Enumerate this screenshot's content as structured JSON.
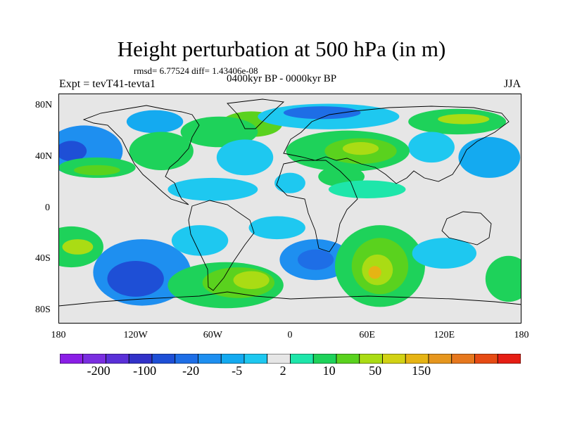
{
  "title": "Height perturbation at 500 hPa (in m)",
  "stats_line": "rmsd= 6.77524 diff= 1.43406e-08",
  "period": "0400kyr BP - 0000kyr BP",
  "experiment": "Expt = tevT41-tevta1",
  "season": "JJA",
  "lat_ticks": [
    {
      "label": "80N",
      "lat": 80
    },
    {
      "label": "40N",
      "lat": 40
    },
    {
      "label": "0",
      "lat": 0
    },
    {
      "label": "40S",
      "lat": -40
    },
    {
      "label": "80S",
      "lat": -80
    }
  ],
  "lon_ticks": [
    {
      "label": "180",
      "lon": -180
    },
    {
      "label": "120W",
      "lon": -120
    },
    {
      "label": "60W",
      "lon": -60
    },
    {
      "label": "0",
      "lon": 0
    },
    {
      "label": "60E",
      "lon": 60
    },
    {
      "label": "120E",
      "lon": 120
    },
    {
      "label": "180",
      "lon": 180
    }
  ],
  "colorbar": {
    "colors": [
      "#8a1ee6",
      "#7a2ee0",
      "#5a30d8",
      "#3232c8",
      "#1e4fd6",
      "#1e6ee6",
      "#1e8ff0",
      "#14aaf0",
      "#1ec8f0",
      "#e6e6e6",
      "#1ee6aa",
      "#1ed25a",
      "#5ad21e",
      "#aadc14",
      "#d2d214",
      "#e6b414",
      "#e6961e",
      "#e6781e",
      "#e64b14",
      "#e61e14"
    ],
    "labels": [
      {
        "text": "-200",
        "boundary": 1
      },
      {
        "text": "-100",
        "boundary": 3
      },
      {
        "text": "-20",
        "boundary": 5
      },
      {
        "text": "-5",
        "boundary": 7
      },
      {
        "text": "2",
        "boundary": 9
      },
      {
        "text": "10",
        "boundary": 11
      },
      {
        "text": "50",
        "boundary": 13
      },
      {
        "text": "150",
        "boundary": 15
      }
    ]
  },
  "field_blobs": [
    {
      "lon": -105,
      "lat": 68,
      "rx": 22,
      "ry": 9,
      "color": "#14aaf0"
    },
    {
      "lon": -30,
      "lat": 66,
      "rx": 24,
      "ry": 10,
      "color": "#5ad21e"
    },
    {
      "lon": -55,
      "lat": 60,
      "rx": 30,
      "ry": 12,
      "color": "#1ed25a"
    },
    {
      "lon": 30,
      "lat": 72,
      "rx": 55,
      "ry": 10,
      "color": "#1ec8f0"
    },
    {
      "lon": 25,
      "lat": 75,
      "rx": 30,
      "ry": 5,
      "color": "#1e6ee6"
    },
    {
      "lon": 130,
      "lat": 68,
      "rx": 38,
      "ry": 10,
      "color": "#1ed25a"
    },
    {
      "lon": 135,
      "lat": 70,
      "rx": 20,
      "ry": 4,
      "color": "#aadc14"
    },
    {
      "lon": 110,
      "lat": 48,
      "rx": 18,
      "ry": 12,
      "color": "#1ec8f0"
    },
    {
      "lon": 155,
      "lat": 40,
      "rx": 24,
      "ry": 16,
      "color": "#14aaf0"
    },
    {
      "lon": -160,
      "lat": 45,
      "rx": 30,
      "ry": 20,
      "color": "#1e8ff0"
    },
    {
      "lon": -170,
      "lat": 45,
      "rx": 12,
      "ry": 8,
      "color": "#1e4fd6"
    },
    {
      "lon": -150,
      "lat": 32,
      "rx": 30,
      "ry": 8,
      "color": "#1ed25a"
    },
    {
      "lon": -150,
      "lat": 30,
      "rx": 18,
      "ry": 4,
      "color": "#5ad21e"
    },
    {
      "lon": -100,
      "lat": 45,
      "rx": 25,
      "ry": 15,
      "color": "#1ed25a"
    },
    {
      "lon": -35,
      "lat": 40,
      "rx": 22,
      "ry": 14,
      "color": "#1ec8f0"
    },
    {
      "lon": 45,
      "lat": 45,
      "rx": 48,
      "ry": 16,
      "color": "#1ed25a"
    },
    {
      "lon": 55,
      "lat": 45,
      "rx": 28,
      "ry": 10,
      "color": "#5ad21e"
    },
    {
      "lon": 55,
      "lat": 47,
      "rx": 14,
      "ry": 5,
      "color": "#aadc14"
    },
    {
      "lon": 40,
      "lat": 25,
      "rx": 18,
      "ry": 8,
      "color": "#1ed25a"
    },
    {
      "lon": -60,
      "lat": 15,
      "rx": 35,
      "ry": 9,
      "color": "#1ec8f0"
    },
    {
      "lon": 60,
      "lat": 15,
      "rx": 30,
      "ry": 7,
      "color": "#1ee6aa"
    },
    {
      "lon": -170,
      "lat": -30,
      "rx": 25,
      "ry": 16,
      "color": "#1ed25a"
    },
    {
      "lon": -165,
      "lat": -30,
      "rx": 12,
      "ry": 6,
      "color": "#aadc14"
    },
    {
      "lon": -115,
      "lat": -50,
      "rx": 38,
      "ry": 26,
      "color": "#1e8ff0"
    },
    {
      "lon": -120,
      "lat": -55,
      "rx": 22,
      "ry": 14,
      "color": "#1e4fd6"
    },
    {
      "lon": -70,
      "lat": -25,
      "rx": 22,
      "ry": 12,
      "color": "#1ec8f0"
    },
    {
      "lon": -50,
      "lat": -60,
      "rx": 45,
      "ry": 18,
      "color": "#1ed25a"
    },
    {
      "lon": -40,
      "lat": -58,
      "rx": 28,
      "ry": 12,
      "color": "#5ad21e"
    },
    {
      "lon": -30,
      "lat": -56,
      "rx": 14,
      "ry": 7,
      "color": "#aadc14"
    },
    {
      "lon": -10,
      "lat": -15,
      "rx": 22,
      "ry": 9,
      "color": "#1ec8f0"
    },
    {
      "lon": 20,
      "lat": -40,
      "rx": 28,
      "ry": 16,
      "color": "#1e8ff0"
    },
    {
      "lon": 20,
      "lat": -40,
      "rx": 14,
      "ry": 8,
      "color": "#1e6ee6"
    },
    {
      "lon": 70,
      "lat": -45,
      "rx": 35,
      "ry": 32,
      "color": "#1ed25a"
    },
    {
      "lon": 70,
      "lat": -45,
      "rx": 22,
      "ry": 22,
      "color": "#5ad21e"
    },
    {
      "lon": 68,
      "lat": -48,
      "rx": 12,
      "ry": 12,
      "color": "#aadc14"
    },
    {
      "lon": 66,
      "lat": -50,
      "rx": 5,
      "ry": 5,
      "color": "#e6b414"
    },
    {
      "lon": 120,
      "lat": -35,
      "rx": 25,
      "ry": 12,
      "color": "#1ec8f0"
    },
    {
      "lon": 170,
      "lat": -55,
      "rx": 18,
      "ry": 18,
      "color": "#1ed25a"
    },
    {
      "lon": 0,
      "lat": 20,
      "rx": 12,
      "ry": 8,
      "color": "#1ec8f0"
    }
  ]
}
